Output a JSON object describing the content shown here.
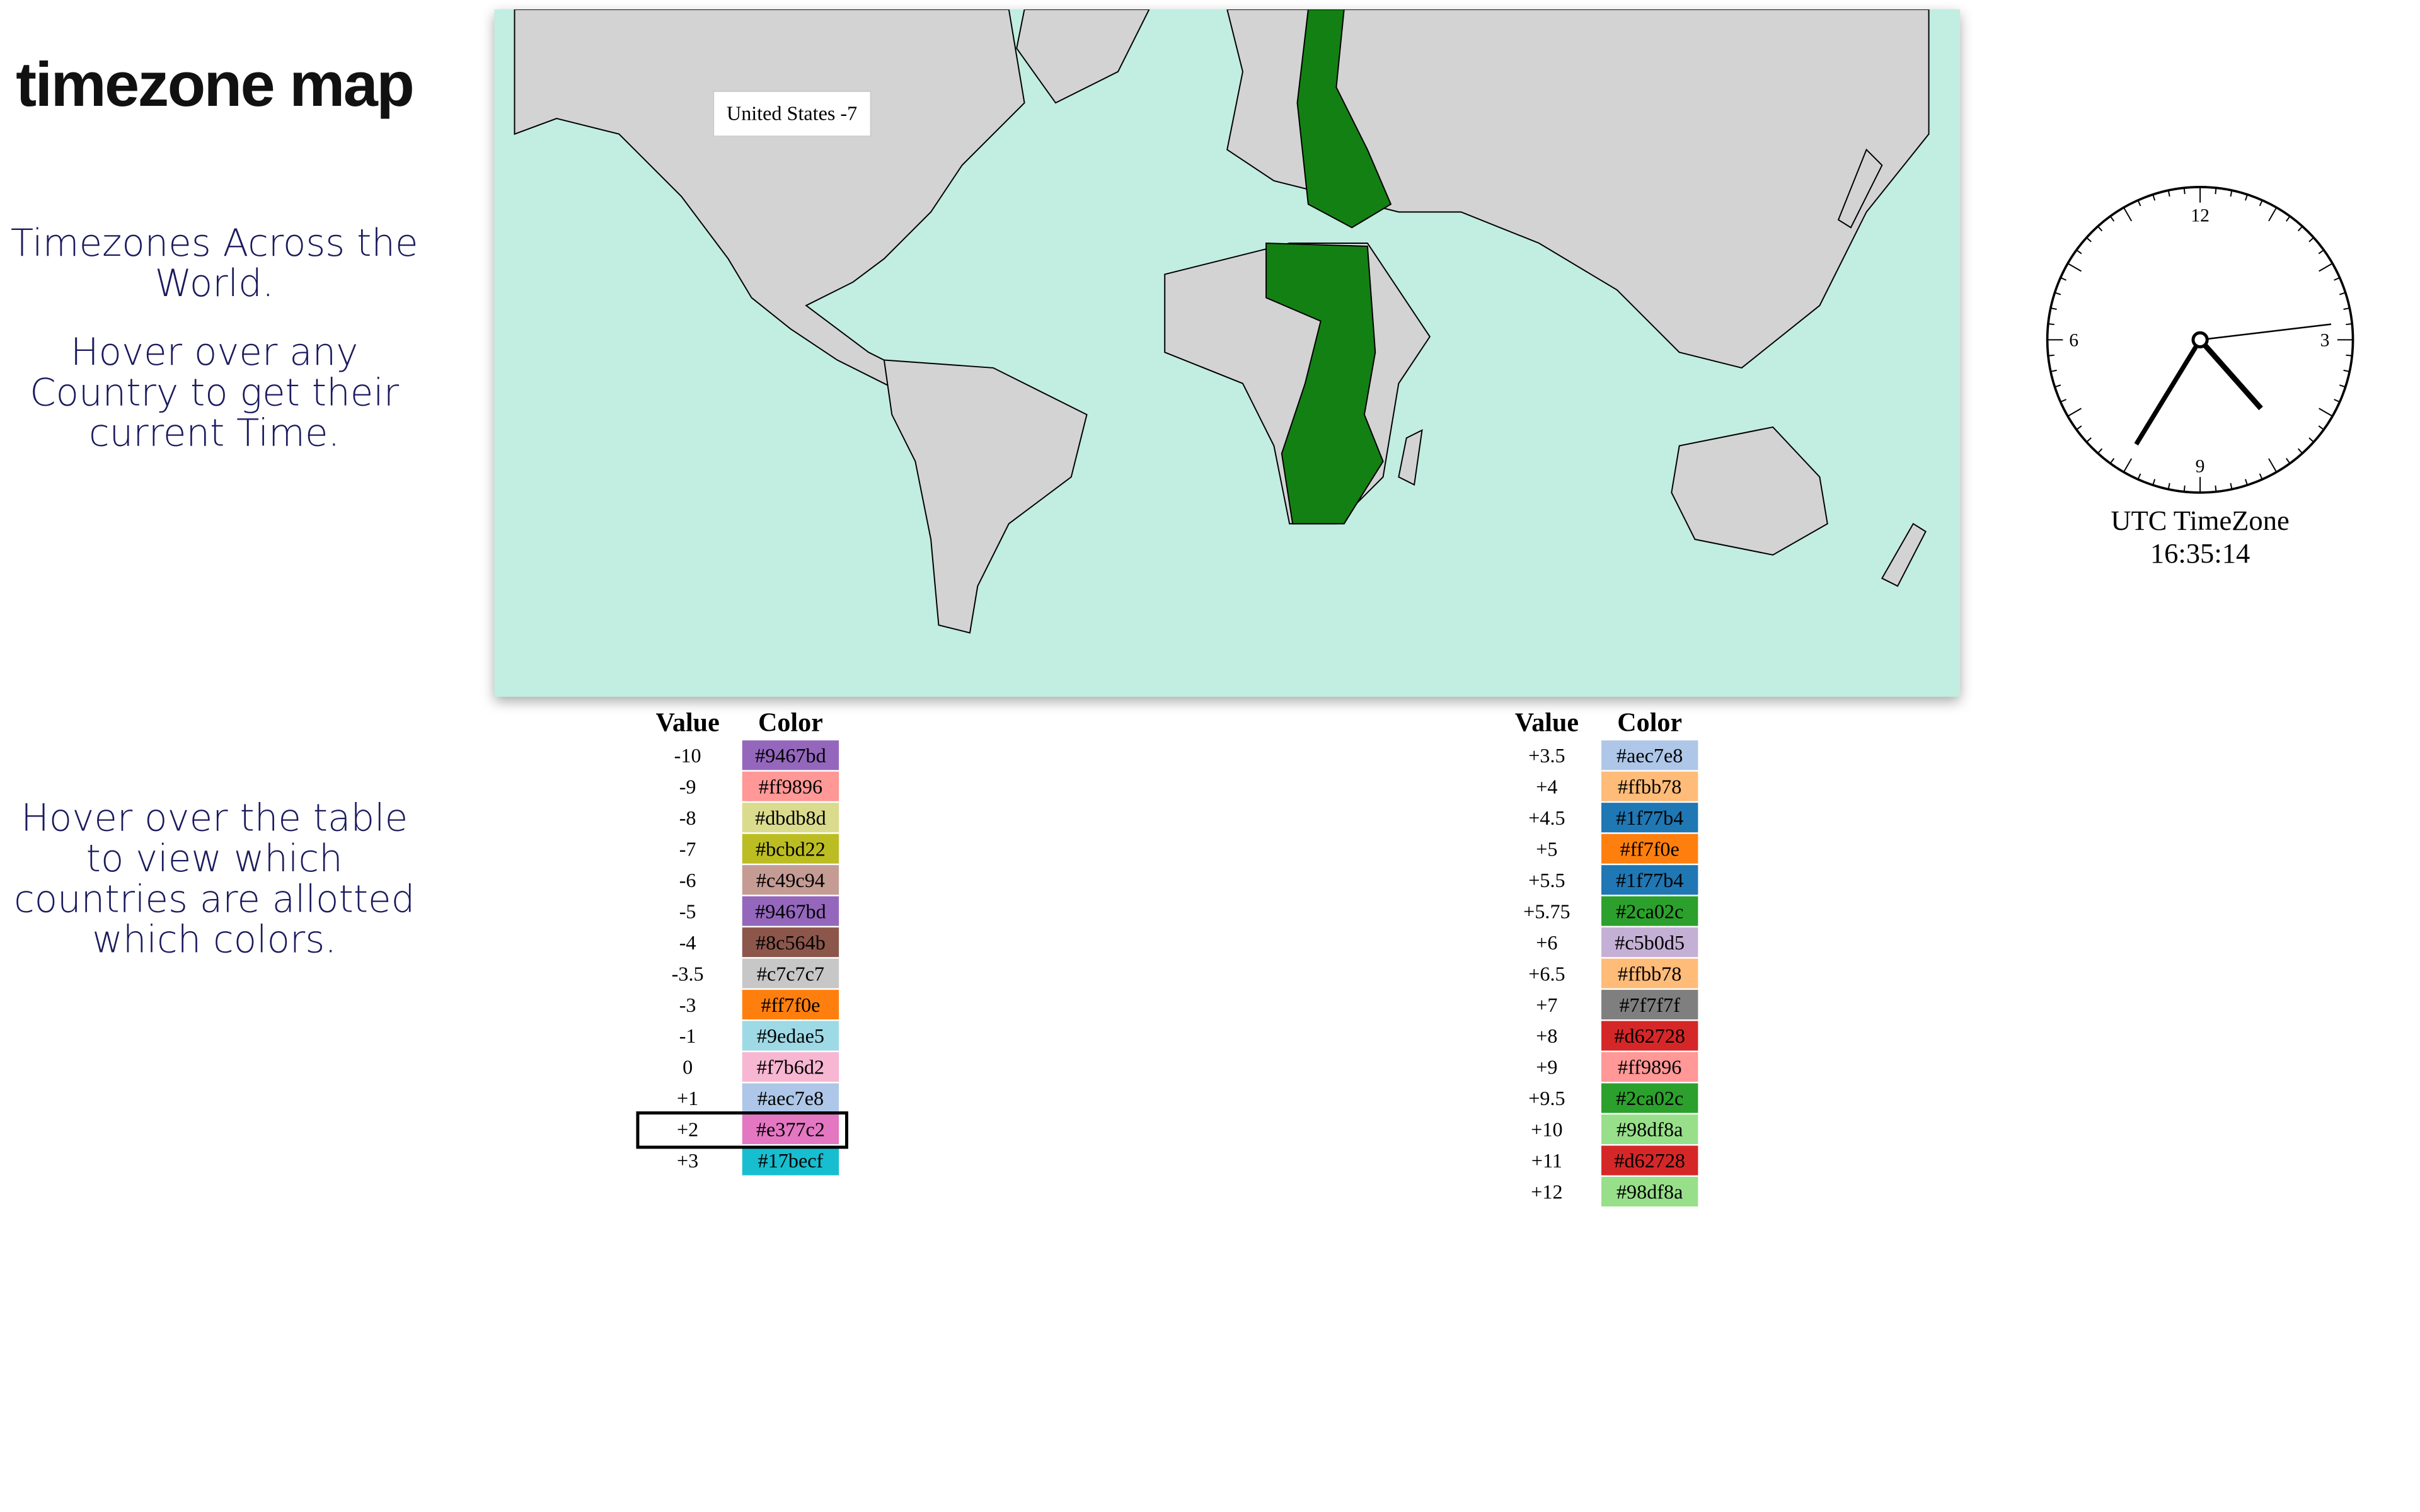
{
  "header": {
    "title": "timezone map",
    "subtitle": "Timezones Across the World.",
    "map_hint": "Hover over any Country to get their current Time.",
    "table_hint": "Hover over the table to view which countries are allotted which colors."
  },
  "map": {
    "tooltip": "United States -7"
  },
  "clock": {
    "numbers": [
      "12",
      "3",
      "6",
      "9"
    ],
    "label": "UTC TimeZone",
    "time": "16:35:14"
  },
  "tables": [
    {
      "headers": [
        "Value",
        "Color"
      ],
      "rows": [
        [
          "-10",
          "#9467bd"
        ],
        [
          "-9",
          "#ff9896"
        ],
        [
          "-8",
          "#dbdb8d"
        ],
        [
          "-7",
          "#bcbd22"
        ],
        [
          "-6",
          "#c49c94"
        ],
        [
          "-5",
          "#9467bd"
        ],
        [
          "-4",
          "#8c564b"
        ],
        [
          "-3.5",
          "#c7c7c7"
        ],
        [
          "-3",
          "#ff7f0e"
        ],
        [
          "-1",
          "#9edae5"
        ],
        [
          "0",
          "#f7b6d2"
        ],
        [
          "+1",
          "#aec7e8"
        ],
        [
          "+2",
          "#e377c2"
        ],
        [
          "+3",
          "#17becf"
        ]
      ]
    },
    {
      "headers": [
        "Value",
        "Color"
      ],
      "rows": [
        [
          "+3.5",
          "#aec7e8"
        ],
        [
          "+4",
          "#ffbb78"
        ],
        [
          "+4.5",
          "#1f77b4"
        ],
        [
          "+5",
          "#ff7f0e"
        ],
        [
          "+5.5",
          "#1f77b4"
        ],
        [
          "+5.75",
          "#2ca02c"
        ],
        [
          "+6",
          "#c5b0d5"
        ],
        [
          "+6.5",
          "#ffbb78"
        ],
        [
          "+7",
          "#7f7f7f"
        ],
        [
          "+8",
          "#d62728"
        ],
        [
          "+9",
          "#ff9896"
        ],
        [
          "+9.5",
          "#2ca02c"
        ],
        [
          "+10",
          "#98df8a"
        ],
        [
          "+11",
          "#d62728"
        ],
        [
          "+12",
          "#98df8a"
        ]
      ]
    }
  ]
}
